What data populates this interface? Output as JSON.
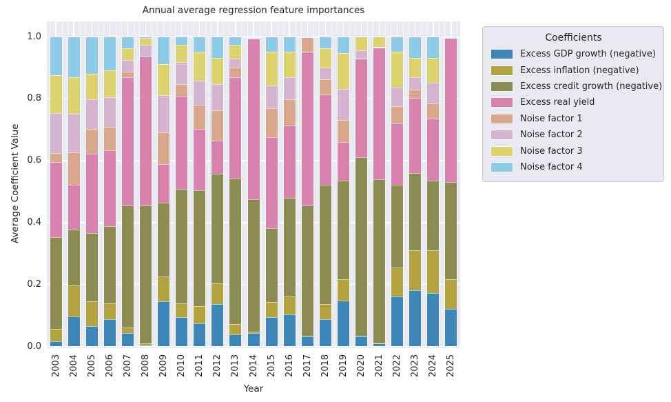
{
  "figure": {
    "title": "Annual average regression feature importances",
    "xlabel": "Year",
    "ylabel": "Average Coefficient Value"
  },
  "legend": {
    "title": "Coefficients"
  },
  "chart_data": {
    "type": "bar",
    "stacked": true,
    "title": "Annual average regression feature importances",
    "xlabel": "Year",
    "ylabel": "Average Coefficient Value",
    "ylim": [
      0,
      1.05
    ],
    "grid": true,
    "legend_position": "outside upper right",
    "legend_title": "Coefficients",
    "yticks": [
      "0.0",
      "0.2",
      "0.4",
      "0.6",
      "0.8",
      "1.0"
    ],
    "ytick_values": [
      0.0,
      0.2,
      0.4,
      0.6,
      0.8,
      1.0
    ],
    "categories": [
      "2003",
      "2004",
      "2005",
      "2006",
      "2007",
      "2008",
      "2009",
      "2010",
      "2011",
      "2012",
      "2013",
      "2014",
      "2015",
      "2016",
      "2017",
      "2018",
      "2019",
      "2020",
      "2021",
      "2022",
      "2023",
      "2024",
      "2025"
    ],
    "series": [
      {
        "name": "Excess GDP growth (negative)",
        "color": "#3d87b8",
        "values": [
          0.017,
          0.096,
          0.066,
          0.087,
          0.043,
          0.004,
          0.145,
          0.095,
          0.075,
          0.137,
          0.039,
          0.044,
          0.095,
          0.103,
          0.032,
          0.088,
          0.147,
          0.032,
          0.007,
          0.162,
          0.181,
          0.173,
          0.121
        ]
      },
      {
        "name": "Excess inflation (negative)",
        "color": "#b2a33f",
        "values": [
          0.04,
          0.1,
          0.079,
          0.052,
          0.019,
          0.006,
          0.082,
          0.045,
          0.056,
          0.067,
          0.034,
          0.004,
          0.049,
          0.059,
          0.002,
          0.048,
          0.071,
          0.002,
          0.002,
          0.093,
          0.13,
          0.138,
          0.097
        ]
      },
      {
        "name": "Excess credit growth (negative)",
        "color": "#8b8c52",
        "values": [
          0.295,
          0.182,
          0.222,
          0.249,
          0.394,
          0.446,
          0.238,
          0.369,
          0.374,
          0.355,
          0.469,
          0.427,
          0.238,
          0.317,
          0.421,
          0.387,
          0.317,
          0.577,
          0.53,
          0.268,
          0.25,
          0.224,
          0.313
        ]
      },
      {
        "name": "Excess real yield",
        "color": "#d883ad",
        "values": [
          0.244,
          0.145,
          0.255,
          0.245,
          0.414,
          0.48,
          0.123,
          0.301,
          0.198,
          0.106,
          0.328,
          0.517,
          0.294,
          0.234,
          0.496,
          0.291,
          0.126,
          0.317,
          0.425,
          0.198,
          0.242,
          0.201,
          0.463
        ]
      },
      {
        "name": "Noise factor 1",
        "color": "#d8a78c",
        "values": [
          0.029,
          0.105,
          0.08,
          0.077,
          0.018,
          0.002,
          0.104,
          0.037,
          0.078,
          0.097,
          0.03,
          0.002,
          0.093,
          0.086,
          0.046,
          0.048,
          0.071,
          0.002,
          0.002,
          0.056,
          0.026,
          0.048,
          0.002
        ]
      },
      {
        "name": "Noise factor 2",
        "color": "#d5b4d0",
        "values": [
          0.128,
          0.123,
          0.097,
          0.096,
          0.037,
          0.037,
          0.119,
          0.071,
          0.078,
          0.085,
          0.029,
          0.002,
          0.075,
          0.071,
          0.001,
          0.038,
          0.1,
          0.026,
          0.002,
          0.059,
          0.041,
          0.067,
          0.002
        ]
      },
      {
        "name": "Noise factor 3",
        "color": "#ddd36e",
        "values": [
          0.123,
          0.119,
          0.082,
          0.086,
          0.039,
          0.022,
          0.101,
          0.056,
          0.093,
          0.086,
          0.045,
          0.002,
          0.108,
          0.082,
          0.001,
          0.063,
          0.116,
          0.042,
          0.03,
          0.116,
          0.063,
          0.082,
          0.001
        ]
      },
      {
        "name": "Noise factor 4",
        "color": "#8dcbe9",
        "values": [
          0.123,
          0.13,
          0.119,
          0.108,
          0.036,
          0.003,
          0.088,
          0.026,
          0.048,
          0.067,
          0.026,
          0.002,
          0.048,
          0.048,
          0.001,
          0.037,
          0.052,
          0.002,
          0.002,
          0.048,
          0.067,
          0.067,
          0.001
        ]
      }
    ]
  }
}
